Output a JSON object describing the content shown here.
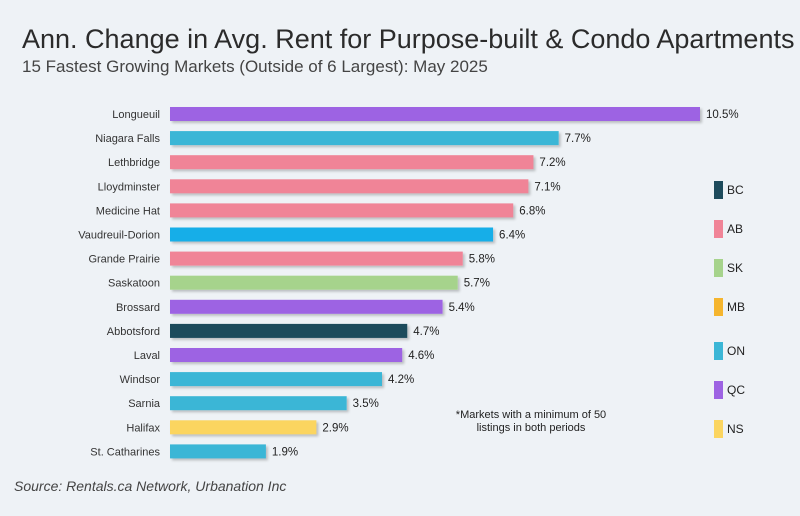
{
  "header": {
    "title": "Ann. Change in Avg. Rent for Purpose-built & Condo Apartments",
    "subtitle": "15 Fastest Growing Markets (Outside of 6 Largest): May 2025"
  },
  "footer": {
    "source": "Source: Rentals.ca Network, Urbanation Inc",
    "note": "*Markets with a minimum of 50 listings in both periods"
  },
  "colors": {
    "BC": "#1d4b5c",
    "AB": "#f08497",
    "SK": "#a6d38c",
    "MB": "#f5b52e",
    "ON": "#3bb6d6",
    "QC": "#9d63e3",
    "NS": "#fbd560",
    "Vaudreuil-Dorion": "#19aee8"
  },
  "legend": {
    "items": [
      {
        "label": "BC",
        "color": "#1d4b5c"
      },
      {
        "label": "AB",
        "color": "#f08497"
      },
      {
        "label": "SK",
        "color": "#a6d38c"
      },
      {
        "label": "MB",
        "color": "#f5b52e"
      },
      {
        "label": "ON",
        "color": "#3bb6d6"
      },
      {
        "label": "QC",
        "color": "#9d63e3"
      },
      {
        "label": "NS",
        "color": "#fbd560"
      }
    ]
  },
  "chart_data": {
    "type": "bar",
    "orientation": "horizontal",
    "title": "Ann. Change in Avg. Rent for Purpose-built & Condo Apartments",
    "subtitle": "15 Fastest Growing Markets (Outside of 6 Largest): May 2025",
    "xlabel": "",
    "ylabel": "",
    "xlim": [
      0,
      10.5
    ],
    "grid": false,
    "legend_position": "right",
    "categories": [
      "Longueuil",
      "Niagara Falls",
      "Lethbridge",
      "Lloydminster",
      "Medicine Hat",
      "Vaudreuil-Dorion",
      "Grande Prairie",
      "Saskatoon",
      "Brossard",
      "Abbotsford",
      "Laval",
      "Windsor",
      "Sarnia",
      "Halifax",
      "St. Catharines"
    ],
    "values": [
      10.5,
      7.7,
      7.2,
      7.1,
      6.8,
      6.4,
      5.8,
      5.7,
      5.4,
      4.7,
      4.6,
      4.2,
      3.5,
      2.9,
      1.9
    ],
    "value_labels": [
      "10.5%",
      "7.7%",
      "7.2%",
      "7.1%",
      "6.8%",
      "6.4%",
      "5.8%",
      "5.7%",
      "5.4%",
      "4.7%",
      "4.6%",
      "4.2%",
      "3.5%",
      "2.9%",
      "1.9%"
    ],
    "groups": [
      "QC",
      "ON",
      "AB",
      "AB",
      "AB",
      "Vaudreuil-Dorion",
      "AB",
      "SK",
      "QC",
      "BC",
      "QC",
      "ON",
      "ON",
      "NS",
      "ON"
    ]
  }
}
